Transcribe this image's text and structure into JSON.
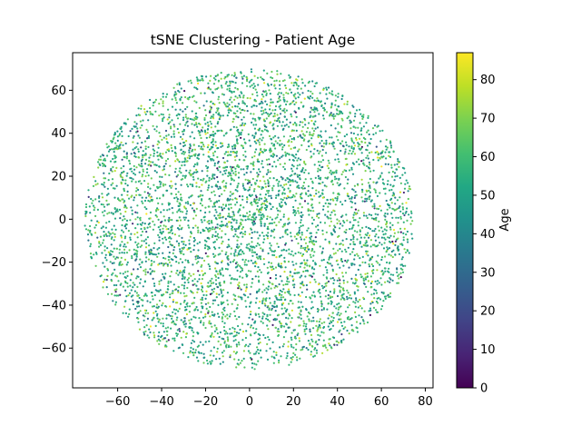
{
  "chart_data": {
    "type": "scatter",
    "title": "tSNE Clustering - Patient Age",
    "xlabel": "",
    "ylabel": "",
    "xlim": [
      -80.5,
      83.5
    ],
    "ylim": [
      -78.5,
      77.5
    ],
    "xticks": [
      -60,
      -40,
      -20,
      0,
      20,
      40,
      60,
      80
    ],
    "yticks": [
      -60,
      -40,
      -20,
      0,
      20,
      40,
      60
    ],
    "grid": false,
    "colorbar": {
      "label": "Age",
      "colormap": "viridis",
      "range": [
        0,
        87
      ],
      "ticks": [
        0,
        10,
        20,
        30,
        40,
        50,
        60,
        70,
        80
      ]
    },
    "point_cloud": {
      "count": 5000,
      "center": [
        0,
        0
      ],
      "radius_x": 75,
      "radius_y": 70,
      "age_mean": 56,
      "age_sd": 11,
      "age_min": 0,
      "age_max": 87,
      "seed": 7
    }
  }
}
